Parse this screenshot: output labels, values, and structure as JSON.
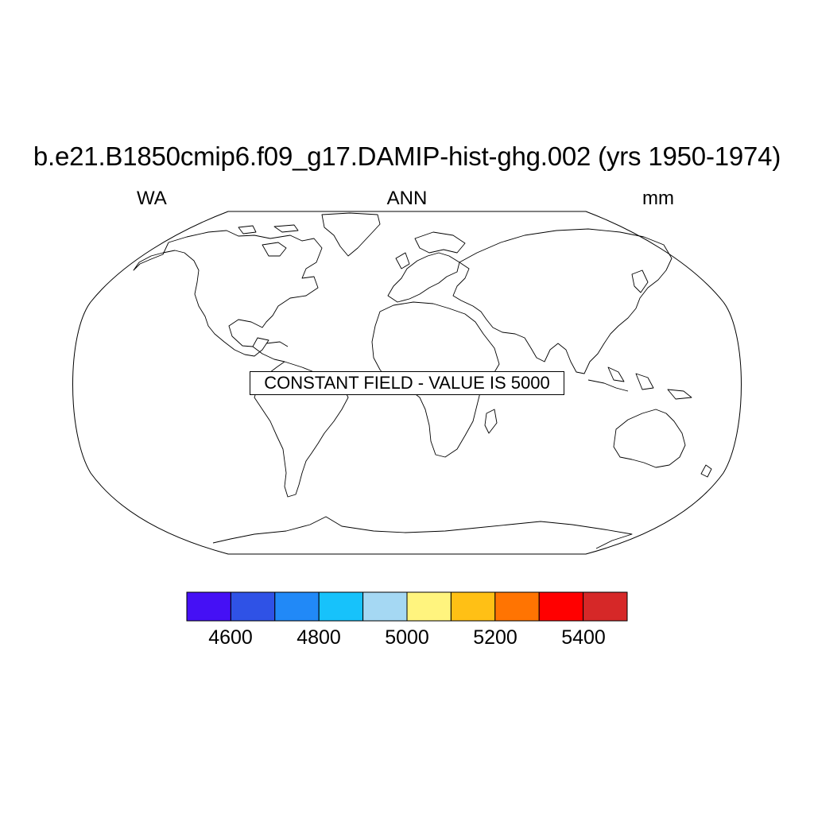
{
  "title": "b.e21.B1850cmip6.f09_g17.DAMIP-hist-ghg.002 (yrs 1950-1974)",
  "subtitles": {
    "left": "WA",
    "center": "ANN",
    "right": "mm"
  },
  "notice": "CONSTANT FIELD - VALUE IS 5000",
  "colorbar": {
    "colors": [
      "#4510f5",
      "#2f52e6",
      "#2189f7",
      "#17c2fb",
      "#a5d8f3",
      "#fff47e",
      "#ffc015",
      "#ff7402",
      "#ff0000",
      "#d62828"
    ],
    "labels": [
      "4600",
      "4800",
      "5000",
      "5200",
      "5400"
    ]
  },
  "map": {
    "projection": "Robinson",
    "outline_color": "#000000"
  }
}
